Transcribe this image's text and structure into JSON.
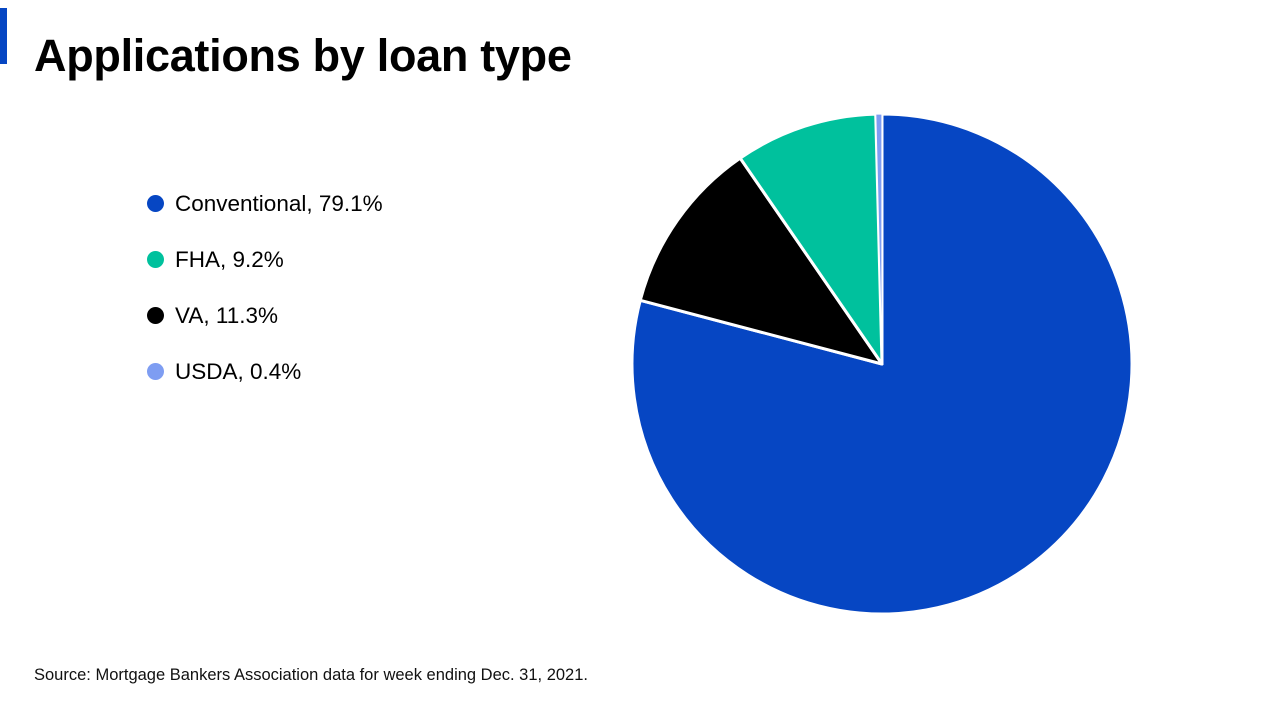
{
  "brand": {
    "accent_bar_color": "#0646C3"
  },
  "chart_data": {
    "type": "pie",
    "title": "Applications by loan type",
    "segments": [
      {
        "label": "Conventional",
        "value": 79.1,
        "display": "Conventional, 79.1%",
        "color": "#0646C3"
      },
      {
        "label": "FHA",
        "value": 9.2,
        "display": "FHA, 9.2%",
        "color": "#00C19D"
      },
      {
        "label": "VA",
        "value": 11.3,
        "display": "VA, 11.3%",
        "color": "#000000"
      },
      {
        "label": "USDA",
        "value": 0.4,
        "display": "USDA, 0.4%",
        "color": "#7E9DF2"
      }
    ],
    "clockwise_draw_order": [
      "Conventional",
      "VA",
      "FHA",
      "USDA"
    ],
    "start_angle_deg": 0,
    "direction": "clockwise",
    "slice_gap_color": "#FFFFFF",
    "legend_position": "left",
    "source": "Source: Mortgage Bankers Association data for week ending Dec. 31, 2021."
  }
}
